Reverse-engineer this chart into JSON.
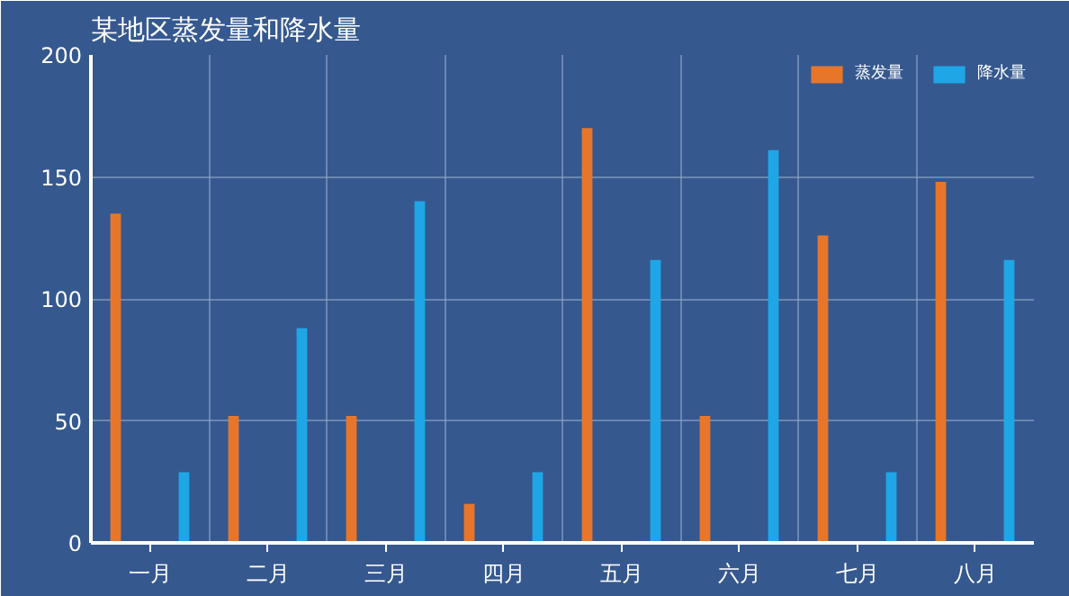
{
  "chart_data": {
    "type": "bar",
    "title": "某地区蒸发量和降水量",
    "categories": [
      "一月",
      "二月",
      "三月",
      "四月",
      "五月",
      "六月",
      "七月",
      "八月"
    ],
    "series": [
      {
        "name": "蒸发量",
        "color": "#e8762a",
        "values": [
          135,
          52,
          52,
          16,
          170,
          52,
          126,
          148
        ]
      },
      {
        "name": "降水量",
        "color": "#1fa6e6",
        "values": [
          29,
          88,
          140,
          29,
          116,
          161,
          29,
          116
        ]
      }
    ],
    "ylim": [
      0,
      200
    ],
    "yticks": [
      0,
      50,
      100,
      150,
      200
    ],
    "grid": true,
    "legend": "top right"
  }
}
